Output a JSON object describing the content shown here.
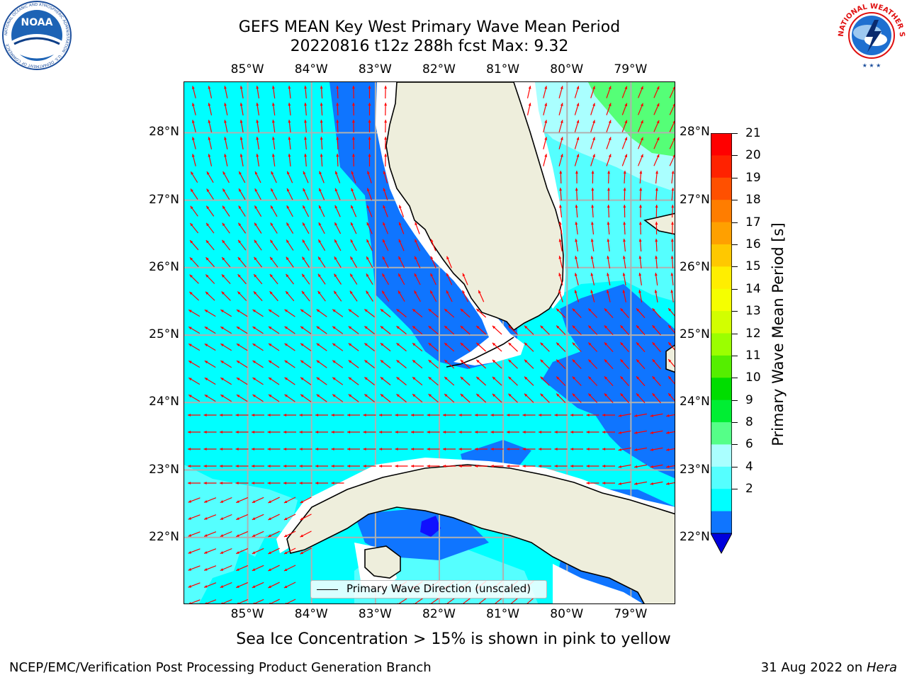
{
  "header": {
    "title_line1": "GEFS MEAN Key West Primary Wave Mean Period",
    "title_line2": "20220816 t12z 288h fcst   Max: 9.32"
  },
  "logos": {
    "left": {
      "icon": "noaa-logo-icon",
      "text": "NOAA",
      "ring_text": "NATIONAL OCEANIC AND ATMOSPHERIC ADMINISTRATION · U.S. DEPARTMENT OF COMMERCE"
    },
    "right": {
      "icon": "nws-logo-icon",
      "ring_text": "NATIONAL WEATHER SERVICE"
    }
  },
  "map": {
    "lon_labels": [
      "85°W",
      "84°W",
      "83°W",
      "82°W",
      "81°W",
      "80°W",
      "79°W"
    ],
    "lat_labels": [
      "28°N",
      "27°N",
      "26°N",
      "25°N",
      "24°N",
      "23°N",
      "22°N"
    ],
    "lon_range": [
      -86.0,
      -78.3
    ],
    "lat_range": [
      21.0,
      28.75
    ],
    "colors": {
      "land": "#eeeedc",
      "ocean_4_6": "#00ffff",
      "ocean_6_8": "#55ffff",
      "ocean_8_9": "#aaffff",
      "ocean_9_10": "#55ff77",
      "ocean_2_4": "#0f75ff",
      "ocean_below_2": "#1010ff",
      "coast": "#000000",
      "grid": "#b0b0b0",
      "arrows": "#ff0000"
    },
    "legend_label": "Primary Wave Direction (unscaled)"
  },
  "colorbar": {
    "label": "Primary Wave Mean Period [s]",
    "ticks": [
      "21",
      "20",
      "19",
      "18",
      "17",
      "16",
      "15",
      "14",
      "13",
      "12",
      "11",
      "10",
      "9",
      "8",
      "6",
      "4",
      "2"
    ],
    "colors": [
      "#ff0000",
      "#ff2200",
      "#ff5000",
      "#ff7d00",
      "#ffa000",
      "#ffc800",
      "#ffee00",
      "#f5ff00",
      "#d2ff00",
      "#9bff00",
      "#55ee00",
      "#00dd00",
      "#00ee33",
      "#55ff88",
      "#aaffff",
      "#55ffff",
      "#00ffff",
      "#0f75ff"
    ],
    "extend_color": "#0000dd"
  },
  "footer": {
    "note": "Sea Ice Concentration > 15% is shown in pink to yellow",
    "credit": "NCEP/EMC/Verification Post Processing Product Generation Branch",
    "date": "31 Aug 2022 on ",
    "host": "Hera"
  }
}
